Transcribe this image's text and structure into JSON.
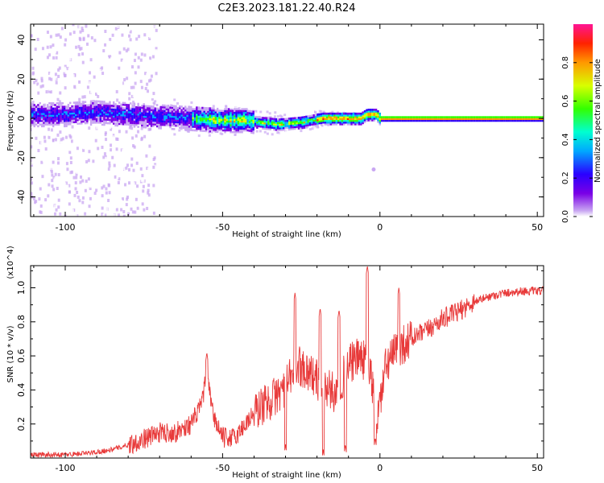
{
  "title": "C2E3.2023.181.22.40.R24",
  "chart_data": [
    {
      "type": "heatmap",
      "xlabel": "Height of straight line (km)",
      "ylabel": "Frequency (Hz)",
      "xlim": [
        -111,
        52
      ],
      "ylim": [
        -50,
        48
      ],
      "x_ticks": [
        -100,
        -50,
        0,
        50
      ],
      "y_ticks": [
        -40,
        -20,
        0,
        20,
        40
      ],
      "colorbar": {
        "label": "Normalized spectral amplitude",
        "range": [
          0,
          1
        ],
        "ticks": [
          "0.0",
          "0.2",
          "0.4",
          "0.6",
          "0.8"
        ],
        "colors": [
          "#ffffff",
          "#c9a7f2",
          "#7a00e6",
          "#2a00ff",
          "#00a8ff",
          "#00ffd0",
          "#33ff00",
          "#d8ff00",
          "#ff9900",
          "#ff2200",
          "#ff1493"
        ]
      },
      "ridge_center_hz": [
        {
          "x": -108,
          "y": 2
        },
        {
          "x": -100,
          "y": 2
        },
        {
          "x": -90,
          "y": 3
        },
        {
          "x": -80,
          "y": 2
        },
        {
          "x": -70,
          "y": 1
        },
        {
          "x": -60,
          "y": 0
        },
        {
          "x": -50,
          "y": -1
        },
        {
          "x": -42,
          "y": -1
        },
        {
          "x": -38,
          "y": -2
        },
        {
          "x": -32,
          "y": -3
        },
        {
          "x": -25,
          "y": -2
        },
        {
          "x": -18,
          "y": 0
        },
        {
          "x": -12,
          "y": 0
        },
        {
          "x": -6,
          "y": 0
        },
        {
          "x": -4,
          "y": 2
        },
        {
          "x": -1,
          "y": 2
        },
        {
          "x": 0,
          "y": 0
        },
        {
          "x": 52,
          "y": 0
        }
      ],
      "isolated_point": {
        "x": -2,
        "y": -26
      }
    },
    {
      "type": "line",
      "xlabel": "Height of straight line (km)",
      "ylabel": "SNR (10 * v/v)",
      "y_multiplier": "(x10^4)",
      "xlim": [
        -111,
        52
      ],
      "ylim": [
        0,
        1.13
      ],
      "x_ticks": [
        -100,
        -50,
        0,
        50
      ],
      "y_ticks": [
        "0.2",
        "0.4",
        "0.6",
        "0.8",
        "1.0"
      ],
      "series": [
        {
          "color": "#e83a3a",
          "envelope": [
            {
              "x": -111,
              "y": 0.02
            },
            {
              "x": -100,
              "y": 0.02
            },
            {
              "x": -92,
              "y": 0.03
            },
            {
              "x": -85,
              "y": 0.05
            },
            {
              "x": -78,
              "y": 0.09
            },
            {
              "x": -70,
              "y": 0.15
            },
            {
              "x": -65,
              "y": 0.15
            },
            {
              "x": -60,
              "y": 0.2
            },
            {
              "x": -57,
              "y": 0.3
            },
            {
              "x": -55,
              "y": 0.48
            },
            {
              "x": -53,
              "y": 0.25
            },
            {
              "x": -50,
              "y": 0.12
            },
            {
              "x": -46,
              "y": 0.12
            },
            {
              "x": -42,
              "y": 0.22
            },
            {
              "x": -38,
              "y": 0.3
            },
            {
              "x": -34,
              "y": 0.35
            },
            {
              "x": -30,
              "y": 0.42
            },
            {
              "x": -26,
              "y": 0.55
            },
            {
              "x": -22,
              "y": 0.5
            },
            {
              "x": -18,
              "y": 0.42
            },
            {
              "x": -14,
              "y": 0.38
            },
            {
              "x": -10,
              "y": 0.55
            },
            {
              "x": -6,
              "y": 0.6
            },
            {
              "x": -3,
              "y": 0.5
            },
            {
              "x": -1,
              "y": 0.22
            },
            {
              "x": 2,
              "y": 0.55
            },
            {
              "x": 6,
              "y": 0.65
            },
            {
              "x": 10,
              "y": 0.7
            },
            {
              "x": 15,
              "y": 0.75
            },
            {
              "x": 20,
              "y": 0.82
            },
            {
              "x": 25,
              "y": 0.86
            },
            {
              "x": 30,
              "y": 0.92
            },
            {
              "x": 35,
              "y": 0.95
            },
            {
              "x": 40,
              "y": 0.97
            },
            {
              "x": 45,
              "y": 0.98
            },
            {
              "x": 52,
              "y": 0.98
            }
          ],
          "peaks": [
            {
              "x": -55,
              "y": 0.62
            },
            {
              "x": -27,
              "y": 0.97
            },
            {
              "x": -19,
              "y": 0.88
            },
            {
              "x": -13,
              "y": 0.87
            },
            {
              "x": -4,
              "y": 1.13
            },
            {
              "x": -1.5,
              "y": 0.12
            },
            {
              "x": 6,
              "y": 1.0
            },
            {
              "x": -18,
              "y": 0.05
            },
            {
              "x": -30,
              "y": 0.08
            },
            {
              "x": -11,
              "y": 0.08
            }
          ]
        }
      ]
    }
  ]
}
